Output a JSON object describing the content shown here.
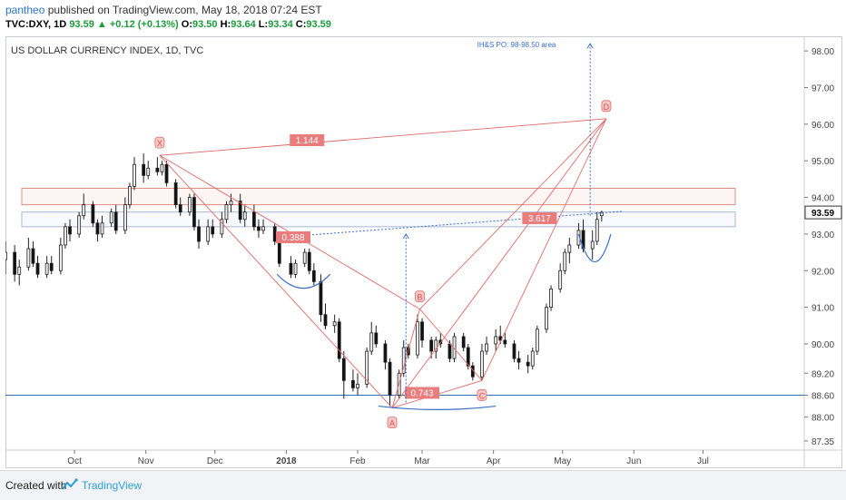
{
  "header": {
    "author": "pantheo",
    "published": "published on TradingView.com, May 18, 2018 07:24 EST",
    "symbol": "TVC:DXY, 1D",
    "last": "93.59",
    "change": "+0.12 (+0.13%)",
    "open_label": "O:",
    "open": "93.50",
    "high_label": "H:",
    "high": "93.64",
    "low_label": "L:",
    "low": "93.34",
    "close_label": "C:",
    "close": "93.59",
    "up_arrow": "▲"
  },
  "chart_data": {
    "type": "candlestick",
    "title": "US DOLLAR CURRENCY INDEX, 1D, TVC",
    "ylim": [
      87.1,
      98.4
    ],
    "y_ticks": [
      "98.00",
      "97.00",
      "96.00",
      "95.00",
      "94.00",
      "93.00",
      "92.00",
      "91.00",
      "90.00",
      "89.20",
      "88.60",
      "88.00",
      "87.35"
    ],
    "y_tick_values": [
      98.0,
      97.0,
      96.0,
      95.0,
      94.0,
      93.0,
      92.0,
      91.0,
      90.0,
      89.2,
      88.6,
      88.0,
      87.35
    ],
    "x_ticks": [
      "Oct",
      "Nov",
      "Dec",
      "2018",
      "Feb",
      "Mar",
      "Apr",
      "May",
      "Jun",
      "Jul"
    ],
    "x_tick_dates": [
      "2017-10-01",
      "2017-11-01",
      "2017-12-01",
      "2018-01-01",
      "2018-02-01",
      "2018-03-01",
      "2018-04-01",
      "2018-05-01",
      "2018-06-01",
      "2018-07-01"
    ],
    "x_range": [
      "2017-09-01",
      "2018-08-14"
    ],
    "last_price": 93.59,
    "support_line": 88.6,
    "resistance_zones": [
      [
        93.8,
        94.25
      ],
      [
        93.2,
        93.6
      ]
    ],
    "neckline": [
      {
        "date": "2018-01-06",
        "v": 92.95
      },
      {
        "date": "2018-05-27",
        "v": 93.62
      }
    ],
    "harmonic_pattern": {
      "labels": [
        "X",
        "A",
        "B",
        "C",
        "D"
      ],
      "points": [
        {
          "label": "X",
          "date": "2017-11-07",
          "v": 95.15
        },
        {
          "label": "A",
          "date": "2018-02-16",
          "v": 88.25
        },
        {
          "label": "B",
          "date": "2018-02-28",
          "v": 90.95
        },
        {
          "label": "C",
          "date": "2018-03-27",
          "v": 89.0
        },
        {
          "label": "D",
          "date": "2018-05-20",
          "v": 96.15
        }
      ],
      "ratios": [
        {
          "text": "1.144",
          "date": "2018-01-10",
          "v": 95.55
        },
        {
          "text": "0.388",
          "date": "2018-01-04",
          "v": 92.9
        },
        {
          "text": "3.617",
          "date": "2018-04-21",
          "v": 93.42
        },
        {
          "text": "0.743",
          "date": "2018-03-01",
          "v": 88.65
        }
      ]
    },
    "annotation": "IH&S PO: 98-98.50 area",
    "candles": [
      {
        "d": "2017-09-01",
        "o": 92.3,
        "h": 92.8,
        "l": 91.9,
        "c": 92.5
      },
      {
        "d": "2017-09-05",
        "o": 92.5,
        "h": 92.7,
        "l": 91.7,
        "c": 91.9
      },
      {
        "d": "2017-09-07",
        "o": 91.9,
        "h": 92.3,
        "l": 91.6,
        "c": 92.1
      },
      {
        "d": "2017-09-11",
        "o": 92.1,
        "h": 92.9,
        "l": 92.0,
        "c": 92.6
      },
      {
        "d": "2017-09-13",
        "o": 92.6,
        "h": 92.8,
        "l": 92.1,
        "c": 92.2
      },
      {
        "d": "2017-09-15",
        "o": 92.2,
        "h": 92.4,
        "l": 91.8,
        "c": 91.9
      },
      {
        "d": "2017-09-19",
        "o": 91.9,
        "h": 92.4,
        "l": 91.8,
        "c": 92.2
      },
      {
        "d": "2017-09-21",
        "o": 92.2,
        "h": 92.4,
        "l": 91.9,
        "c": 92.0
      },
      {
        "d": "2017-09-25",
        "o": 92.0,
        "h": 92.9,
        "l": 91.9,
        "c": 92.7
      },
      {
        "d": "2017-09-27",
        "o": 92.7,
        "h": 93.3,
        "l": 92.6,
        "c": 93.2
      },
      {
        "d": "2017-09-29",
        "o": 93.2,
        "h": 93.4,
        "l": 92.8,
        "c": 93.0
      },
      {
        "d": "2017-10-03",
        "o": 93.0,
        "h": 93.6,
        "l": 92.9,
        "c": 93.5
      },
      {
        "d": "2017-10-05",
        "o": 93.5,
        "h": 94.1,
        "l": 93.4,
        "c": 93.8
      },
      {
        "d": "2017-10-09",
        "o": 93.8,
        "h": 93.9,
        "l": 93.2,
        "c": 93.3
      },
      {
        "d": "2017-10-11",
        "o": 93.3,
        "h": 93.4,
        "l": 92.8,
        "c": 93.0
      },
      {
        "d": "2017-10-13",
        "o": 93.0,
        "h": 93.5,
        "l": 92.9,
        "c": 93.3
      },
      {
        "d": "2017-10-17",
        "o": 93.3,
        "h": 93.7,
        "l": 93.2,
        "c": 93.6
      },
      {
        "d": "2017-10-19",
        "o": 93.6,
        "h": 93.8,
        "l": 93.0,
        "c": 93.1
      },
      {
        "d": "2017-10-23",
        "o": 93.1,
        "h": 94.0,
        "l": 93.0,
        "c": 93.8
      },
      {
        "d": "2017-10-25",
        "o": 93.8,
        "h": 94.4,
        "l": 93.7,
        "c": 94.3
      },
      {
        "d": "2017-10-27",
        "o": 94.3,
        "h": 95.1,
        "l": 94.2,
        "c": 94.9
      },
      {
        "d": "2017-10-31",
        "o": 94.9,
        "h": 95.2,
        "l": 94.4,
        "c": 94.6
      },
      {
        "d": "2017-11-02",
        "o": 94.6,
        "h": 95.0,
        "l": 94.5,
        "c": 94.8
      },
      {
        "d": "2017-11-06",
        "o": 94.8,
        "h": 95.1,
        "l": 94.6,
        "c": 94.7
      },
      {
        "d": "2017-11-08",
        "o": 94.7,
        "h": 95.0,
        "l": 94.6,
        "c": 94.9
      },
      {
        "d": "2017-11-10",
        "o": 94.9,
        "h": 95.0,
        "l": 94.3,
        "c": 94.4
      },
      {
        "d": "2017-11-14",
        "o": 94.4,
        "h": 94.5,
        "l": 93.7,
        "c": 93.8
      },
      {
        "d": "2017-11-16",
        "o": 93.8,
        "h": 94.0,
        "l": 93.5,
        "c": 93.6
      },
      {
        "d": "2017-11-20",
        "o": 93.6,
        "h": 94.1,
        "l": 93.5,
        "c": 94.0
      },
      {
        "d": "2017-11-22",
        "o": 94.0,
        "h": 94.1,
        "l": 93.1,
        "c": 93.2
      },
      {
        "d": "2017-11-24",
        "o": 93.2,
        "h": 93.4,
        "l": 92.6,
        "c": 92.8
      },
      {
        "d": "2017-11-28",
        "o": 92.8,
        "h": 93.4,
        "l": 92.7,
        "c": 93.2
      },
      {
        "d": "2017-11-30",
        "o": 93.2,
        "h": 93.4,
        "l": 92.9,
        "c": 93.0
      },
      {
        "d": "2017-12-04",
        "o": 93.0,
        "h": 93.6,
        "l": 92.9,
        "c": 93.4
      },
      {
        "d": "2017-12-06",
        "o": 93.4,
        "h": 93.9,
        "l": 93.3,
        "c": 93.8
      },
      {
        "d": "2017-12-08",
        "o": 93.8,
        "h": 94.1,
        "l": 93.6,
        "c": 93.9
      },
      {
        "d": "2017-12-12",
        "o": 93.9,
        "h": 94.1,
        "l": 93.3,
        "c": 93.4
      },
      {
        "d": "2017-12-14",
        "o": 93.4,
        "h": 93.8,
        "l": 93.2,
        "c": 93.6
      },
      {
        "d": "2017-12-18",
        "o": 93.6,
        "h": 93.8,
        "l": 93.1,
        "c": 93.2
      },
      {
        "d": "2017-12-20",
        "o": 93.2,
        "h": 93.4,
        "l": 92.9,
        "c": 93.1
      },
      {
        "d": "2017-12-22",
        "o": 93.1,
        "h": 93.4,
        "l": 93.0,
        "c": 93.2
      },
      {
        "d": "2017-12-27",
        "o": 93.2,
        "h": 93.3,
        "l": 92.7,
        "c": 92.8
      },
      {
        "d": "2017-12-29",
        "o": 92.8,
        "h": 92.9,
        "l": 92.1,
        "c": 92.2
      },
      {
        "d": "2018-01-03",
        "o": 92.2,
        "h": 92.4,
        "l": 91.8,
        "c": 91.9
      },
      {
        "d": "2018-01-05",
        "o": 91.9,
        "h": 92.3,
        "l": 91.8,
        "c": 92.2
      },
      {
        "d": "2018-01-09",
        "o": 92.2,
        "h": 92.6,
        "l": 92.1,
        "c": 92.5
      },
      {
        "d": "2018-01-11",
        "o": 92.5,
        "h": 92.6,
        "l": 91.9,
        "c": 92.0
      },
      {
        "d": "2018-01-13",
        "o": 92.0,
        "h": 92.2,
        "l": 91.6,
        "c": 91.7
      },
      {
        "d": "2018-01-16",
        "o": 91.7,
        "h": 91.9,
        "l": 90.6,
        "c": 90.8
      },
      {
        "d": "2018-01-18",
        "o": 90.8,
        "h": 91.1,
        "l": 90.4,
        "c": 90.5
      },
      {
        "d": "2018-01-22",
        "o": 90.5,
        "h": 90.8,
        "l": 90.3,
        "c": 90.6
      },
      {
        "d": "2018-01-24",
        "o": 90.6,
        "h": 90.7,
        "l": 89.5,
        "c": 89.6
      },
      {
        "d": "2018-01-26",
        "o": 89.6,
        "h": 89.8,
        "l": 88.5,
        "c": 89.0
      },
      {
        "d": "2018-01-30",
        "o": 89.0,
        "h": 89.3,
        "l": 88.7,
        "c": 88.8
      },
      {
        "d": "2018-02-01",
        "o": 88.8,
        "h": 89.2,
        "l": 88.6,
        "c": 88.9
      },
      {
        "d": "2018-02-05",
        "o": 88.9,
        "h": 89.9,
        "l": 88.8,
        "c": 89.8
      },
      {
        "d": "2018-02-07",
        "o": 89.8,
        "h": 90.6,
        "l": 89.7,
        "c": 90.3
      },
      {
        "d": "2018-02-09",
        "o": 90.3,
        "h": 90.5,
        "l": 89.9,
        "c": 90.0
      },
      {
        "d": "2018-02-13",
        "o": 90.0,
        "h": 90.1,
        "l": 89.3,
        "c": 89.5
      },
      {
        "d": "2018-02-15",
        "o": 89.5,
        "h": 89.6,
        "l": 88.3,
        "c": 88.6
      },
      {
        "d": "2018-02-19",
        "o": 88.6,
        "h": 89.3,
        "l": 88.5,
        "c": 89.2
      },
      {
        "d": "2018-02-21",
        "o": 89.2,
        "h": 90.1,
        "l": 89.1,
        "c": 89.9
      },
      {
        "d": "2018-02-23",
        "o": 89.9,
        "h": 90.0,
        "l": 89.6,
        "c": 89.7
      },
      {
        "d": "2018-02-27",
        "o": 89.7,
        "h": 90.8,
        "l": 89.6,
        "c": 90.6
      },
      {
        "d": "2018-03-01",
        "o": 90.6,
        "h": 90.7,
        "l": 89.9,
        "c": 90.1
      },
      {
        "d": "2018-03-05",
        "o": 90.1,
        "h": 90.2,
        "l": 89.6,
        "c": 89.8
      },
      {
        "d": "2018-03-07",
        "o": 89.8,
        "h": 90.2,
        "l": 89.6,
        "c": 90.1
      },
      {
        "d": "2018-03-09",
        "o": 90.1,
        "h": 90.3,
        "l": 89.9,
        "c": 90.0
      },
      {
        "d": "2018-03-13",
        "o": 90.0,
        "h": 90.1,
        "l": 89.5,
        "c": 89.6
      },
      {
        "d": "2018-03-15",
        "o": 89.6,
        "h": 90.3,
        "l": 89.5,
        "c": 90.2
      },
      {
        "d": "2018-03-19",
        "o": 90.2,
        "h": 90.3,
        "l": 89.8,
        "c": 89.9
      },
      {
        "d": "2018-03-21",
        "o": 89.9,
        "h": 90.0,
        "l": 89.3,
        "c": 89.4
      },
      {
        "d": "2018-03-23",
        "o": 89.4,
        "h": 89.5,
        "l": 89.0,
        "c": 89.1
      },
      {
        "d": "2018-03-27",
        "o": 89.1,
        "h": 90.0,
        "l": 89.0,
        "c": 89.8
      },
      {
        "d": "2018-03-29",
        "o": 89.8,
        "h": 90.2,
        "l": 89.7,
        "c": 90.0
      },
      {
        "d": "2018-04-02",
        "o": 90.0,
        "h": 90.4,
        "l": 89.8,
        "c": 90.2
      },
      {
        "d": "2018-04-04",
        "o": 90.2,
        "h": 90.5,
        "l": 90.0,
        "c": 90.1
      },
      {
        "d": "2018-04-06",
        "o": 90.1,
        "h": 90.3,
        "l": 89.9,
        "c": 90.0
      },
      {
        "d": "2018-04-10",
        "o": 90.0,
        "h": 90.1,
        "l": 89.5,
        "c": 89.6
      },
      {
        "d": "2018-04-12",
        "o": 89.6,
        "h": 89.8,
        "l": 89.3,
        "c": 89.5
      },
      {
        "d": "2018-04-16",
        "o": 89.5,
        "h": 89.7,
        "l": 89.2,
        "c": 89.4
      },
      {
        "d": "2018-04-18",
        "o": 89.4,
        "h": 89.9,
        "l": 89.3,
        "c": 89.8
      },
      {
        "d": "2018-04-20",
        "o": 89.8,
        "h": 90.5,
        "l": 89.7,
        "c": 90.4
      },
      {
        "d": "2018-04-24",
        "o": 90.4,
        "h": 91.1,
        "l": 90.3,
        "c": 91.0
      },
      {
        "d": "2018-04-26",
        "o": 91.0,
        "h": 91.6,
        "l": 90.9,
        "c": 91.5
      },
      {
        "d": "2018-04-30",
        "o": 91.5,
        "h": 92.2,
        "l": 91.4,
        "c": 92.0
      },
      {
        "d": "2018-05-02",
        "o": 92.0,
        "h": 92.6,
        "l": 91.9,
        "c": 92.5
      },
      {
        "d": "2018-05-04",
        "o": 92.5,
        "h": 92.9,
        "l": 92.2,
        "c": 92.7
      },
      {
        "d": "2018-05-08",
        "o": 92.7,
        "h": 93.3,
        "l": 92.6,
        "c": 93.1
      },
      {
        "d": "2018-05-10",
        "o": 93.1,
        "h": 93.4,
        "l": 92.5,
        "c": 92.6
      },
      {
        "d": "2018-05-14",
        "o": 92.6,
        "h": 93.1,
        "l": 92.3,
        "c": 92.8
      },
      {
        "d": "2018-05-16",
        "o": 92.8,
        "h": 93.6,
        "l": 92.7,
        "c": 93.4
      },
      {
        "d": "2018-05-18",
        "o": 93.5,
        "h": 93.64,
        "l": 93.34,
        "c": 93.59
      }
    ]
  },
  "footer": {
    "created_with": "Created with",
    "brand": "TradingView"
  },
  "colors": {
    "up": "#f0f0f0",
    "down": "#111111",
    "pattern": "#e06a6a",
    "support": "#2f6fba",
    "neckline": "#3a6fc9"
  }
}
